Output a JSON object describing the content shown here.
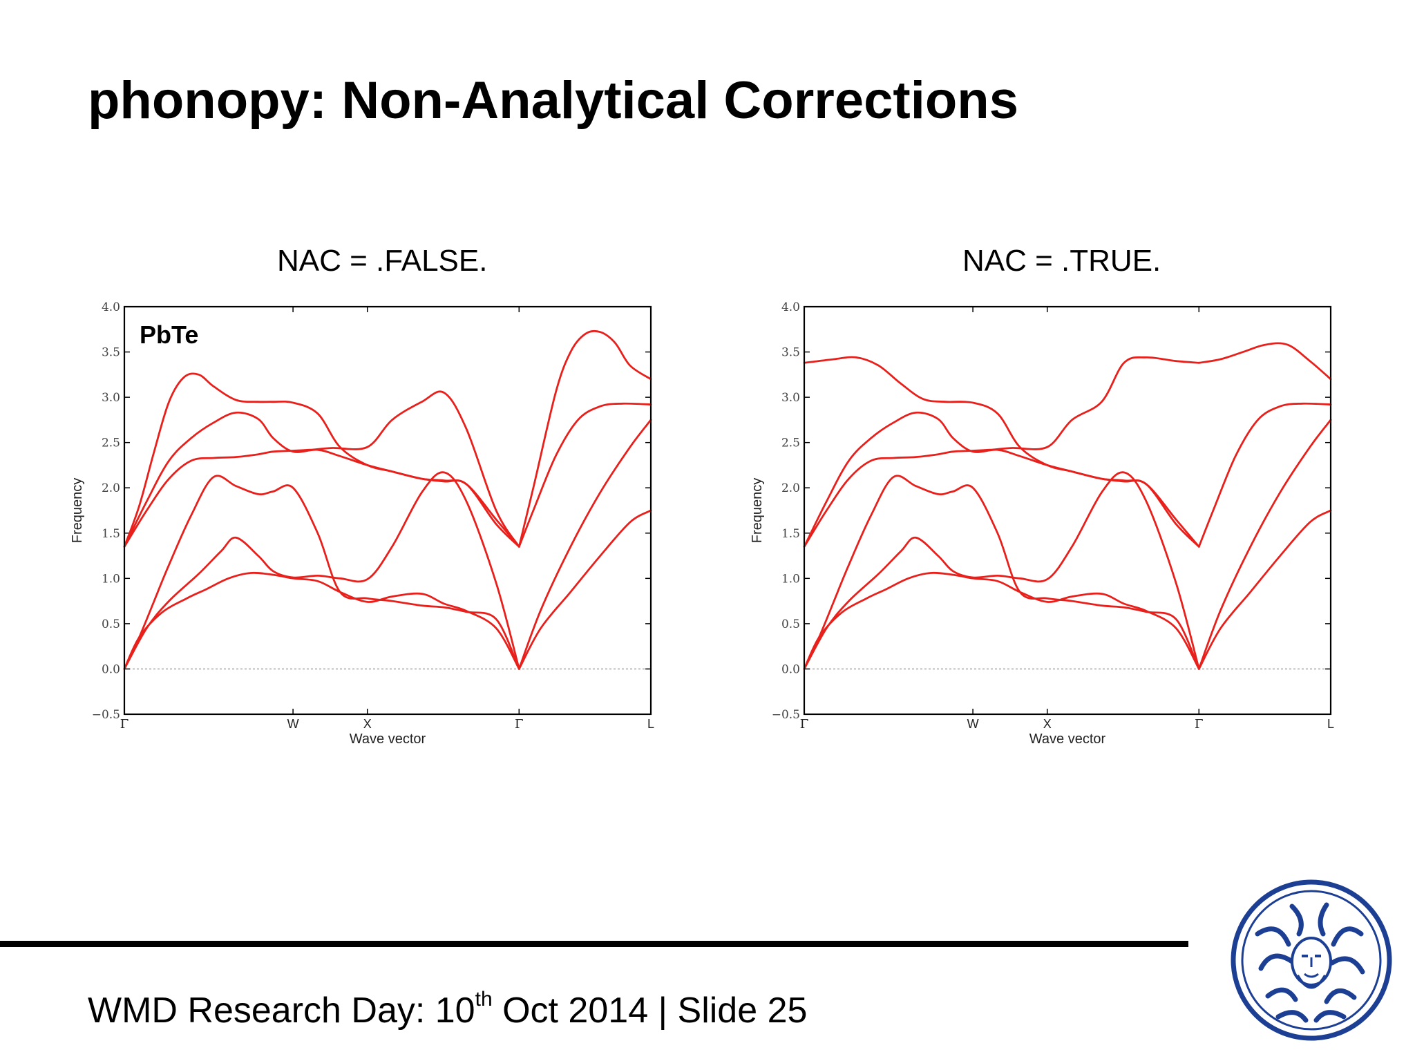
{
  "title": "phonopy: Non-Analytical Corrections",
  "footer": {
    "prefix": "WMD Research Day: 10",
    "superscript": "th",
    "suffix": " Oct 2014 | Slide 25"
  },
  "colors": {
    "band": "#e8201c",
    "logo": "#1c3f94"
  },
  "logo_icon": "university-seal-icon",
  "chart_data": [
    {
      "type": "line",
      "title": "NAC = .FALSE.",
      "annotation": "PbTe",
      "xlabel": "Wave vector",
      "ylabel": "Frequency",
      "ylim": [
        -0.5,
        4.0
      ],
      "yticks": [
        "−0.5",
        "0.0",
        "0.5",
        "1.0",
        "1.5",
        "2.0",
        "2.5",
        "3.0",
        "3.5",
        "4.0"
      ],
      "xlim": [
        0,
        3.54
      ],
      "xticks": [
        {
          "value": 0,
          "label": "Γ"
        },
        {
          "value": 1.134,
          "label": "W"
        },
        {
          "value": 1.634,
          "label": "X"
        },
        {
          "value": 2.654,
          "label": "Γ"
        },
        {
          "value": 3.54,
          "label": "L"
        }
      ],
      "zero_line": true,
      "series": [
        {
          "x": [
            0,
            0.1,
            0.25,
            0.42,
            0.55,
            0.7,
            0.85,
            1.0,
            1.134,
            1.3,
            1.45,
            1.634,
            1.8,
            2.0,
            2.15,
            2.3,
            2.5,
            2.654
          ],
          "y": [
            0.0,
            0.35,
            0.62,
            0.78,
            0.88,
            1.0,
            1.06,
            1.04,
            1.0,
            0.97,
            0.85,
            0.74,
            0.8,
            0.83,
            0.72,
            0.64,
            0.45,
            0.0
          ]
        },
        {
          "x": [
            0,
            0.15,
            0.3,
            0.5,
            0.65,
            0.75,
            0.9,
            1.0,
            1.134,
            1.3,
            1.45,
            1.634,
            1.8,
            2.0,
            2.15,
            2.3,
            2.5,
            2.654
          ],
          "y": [
            0.0,
            0.45,
            0.75,
            1.05,
            1.3,
            1.45,
            1.25,
            1.08,
            1.01,
            1.03,
            1.0,
            0.99,
            1.35,
            1.95,
            2.17,
            1.85,
            0.95,
            0.0
          ]
        },
        {
          "x": [
            0,
            0.1,
            0.2,
            0.3,
            0.45,
            0.6,
            0.75,
            0.9,
            1.0,
            1.134,
            1.3,
            1.45,
            1.634,
            1.8,
            2.0,
            2.15,
            2.3,
            2.5,
            2.654
          ],
          "y": [
            0.0,
            0.35,
            0.75,
            1.15,
            1.7,
            2.12,
            2.02,
            1.93,
            1.96,
            2.0,
            1.5,
            0.85,
            0.78,
            0.75,
            0.7,
            0.68,
            0.63,
            0.55,
            0.0
          ]
        },
        {
          "x": [
            0,
            0.15,
            0.3,
            0.45,
            0.6,
            0.75,
            0.9,
            1.0,
            1.134,
            1.25,
            1.4,
            1.634,
            1.8,
            2.0,
            2.15,
            2.3,
            2.5,
            2.654
          ],
          "y": [
            1.35,
            1.75,
            2.1,
            2.3,
            2.33,
            2.34,
            2.37,
            2.4,
            2.41,
            2.42,
            2.44,
            2.45,
            2.75,
            2.95,
            3.05,
            2.65,
            1.75,
            1.35
          ]
        },
        {
          "x": [
            0,
            0.15,
            0.3,
            0.45,
            0.6,
            0.75,
            0.9,
            1.0,
            1.134,
            1.3,
            1.45,
            1.634,
            1.8,
            2.0,
            2.15,
            2.3,
            2.5,
            2.654
          ],
          "y": [
            1.35,
            1.85,
            2.3,
            2.55,
            2.72,
            2.83,
            2.76,
            2.55,
            2.4,
            2.42,
            2.35,
            2.25,
            2.18,
            2.1,
            2.07,
            2.04,
            1.6,
            1.35
          ]
        },
        {
          "x": [
            0,
            0.1,
            0.2,
            0.3,
            0.4,
            0.5,
            0.6,
            0.75,
            0.9,
            1.0,
            1.134,
            1.3,
            1.45,
            1.634,
            1.8,
            2.0,
            2.15,
            2.3,
            2.5,
            2.654
          ],
          "y": [
            1.35,
            1.8,
            2.4,
            2.95,
            3.22,
            3.25,
            3.12,
            2.97,
            2.95,
            2.95,
            2.94,
            2.82,
            2.45,
            2.25,
            2.18,
            2.1,
            2.08,
            2.04,
            1.65,
            1.35
          ]
        },
        {
          "x": [
            2.654,
            2.8,
            3.0,
            3.2,
            3.4,
            3.54
          ],
          "y": [
            0.0,
            0.45,
            0.85,
            1.25,
            1.62,
            1.75
          ]
        },
        {
          "x": [
            2.654,
            2.8,
            3.0,
            3.2,
            3.4,
            3.54
          ],
          "y": [
            0.0,
            0.65,
            1.35,
            1.95,
            2.45,
            2.75
          ]
        },
        {
          "x": [
            2.654,
            2.75,
            2.9,
            3.05,
            3.2,
            3.35,
            3.54
          ],
          "y": [
            1.35,
            1.75,
            2.35,
            2.75,
            2.9,
            2.93,
            2.92
          ]
        },
        {
          "x": [
            2.654,
            2.75,
            2.9,
            3.0,
            3.1,
            3.2,
            3.3,
            3.4,
            3.54
          ],
          "y": [
            1.35,
            2.0,
            3.05,
            3.5,
            3.7,
            3.72,
            3.6,
            3.35,
            3.2
          ]
        }
      ]
    },
    {
      "type": "line",
      "title": "NAC = .TRUE.",
      "xlabel": "Wave vector",
      "ylabel": "Frequency",
      "ylim": [
        -0.5,
        4.0
      ],
      "yticks": [
        "−0.5",
        "0.0",
        "0.5",
        "1.0",
        "1.5",
        "2.0",
        "2.5",
        "3.0",
        "3.5",
        "4.0"
      ],
      "xlim": [
        0,
        3.54
      ],
      "xticks": [
        {
          "value": 0,
          "label": "Γ"
        },
        {
          "value": 1.134,
          "label": "W"
        },
        {
          "value": 1.634,
          "label": "X"
        },
        {
          "value": 2.654,
          "label": "Γ"
        },
        {
          "value": 3.54,
          "label": "L"
        }
      ],
      "zero_line": true,
      "series": [
        {
          "x": [
            0,
            0.1,
            0.25,
            0.42,
            0.55,
            0.7,
            0.85,
            1.0,
            1.134,
            1.3,
            1.45,
            1.634,
            1.8,
            2.0,
            2.15,
            2.3,
            2.5,
            2.654
          ],
          "y": [
            0.0,
            0.35,
            0.62,
            0.78,
            0.88,
            1.0,
            1.06,
            1.04,
            1.0,
            0.97,
            0.85,
            0.74,
            0.8,
            0.83,
            0.72,
            0.64,
            0.45,
            0.0
          ]
        },
        {
          "x": [
            0,
            0.15,
            0.3,
            0.5,
            0.65,
            0.75,
            0.9,
            1.0,
            1.134,
            1.3,
            1.45,
            1.634,
            1.8,
            2.0,
            2.15,
            2.3,
            2.5,
            2.654
          ],
          "y": [
            0.0,
            0.45,
            0.75,
            1.05,
            1.3,
            1.45,
            1.25,
            1.08,
            1.01,
            1.03,
            1.0,
            0.99,
            1.35,
            1.95,
            2.17,
            1.85,
            0.95,
            0.0
          ]
        },
        {
          "x": [
            0,
            0.1,
            0.2,
            0.3,
            0.45,
            0.6,
            0.75,
            0.9,
            1.0,
            1.134,
            1.3,
            1.45,
            1.634,
            1.8,
            2.0,
            2.15,
            2.3,
            2.5,
            2.654
          ],
          "y": [
            0.0,
            0.35,
            0.75,
            1.15,
            1.7,
            2.12,
            2.02,
            1.93,
            1.96,
            2.0,
            1.5,
            0.85,
            0.78,
            0.75,
            0.7,
            0.68,
            0.63,
            0.55,
            0.0
          ]
        },
        {
          "x": [
            0,
            0.15,
            0.3,
            0.45,
            0.6,
            0.75,
            0.9,
            1.0,
            1.134,
            1.25,
            1.4,
            1.634,
            1.8,
            2.0,
            2.15,
            2.3,
            2.5,
            2.654
          ],
          "y": [
            1.35,
            1.75,
            2.1,
            2.3,
            2.33,
            2.34,
            2.37,
            2.4,
            2.41,
            2.42,
            2.44,
            2.45,
            2.75,
            2.95,
            3.38,
            3.44,
            3.4,
            3.38
          ]
        },
        {
          "x": [
            0,
            0.15,
            0.3,
            0.45,
            0.6,
            0.75,
            0.9,
            1.0,
            1.134,
            1.3,
            1.45,
            1.634,
            1.8,
            2.0,
            2.15,
            2.3,
            2.5,
            2.654
          ],
          "y": [
            1.35,
            1.85,
            2.3,
            2.55,
            2.72,
            2.83,
            2.76,
            2.55,
            2.4,
            2.42,
            2.35,
            2.25,
            2.18,
            2.1,
            2.07,
            2.04,
            1.6,
            1.35
          ]
        },
        {
          "x": [
            0,
            0.2,
            0.35,
            0.5,
            0.65,
            0.8,
            0.95,
            1.134,
            1.3,
            1.45,
            1.634,
            1.8,
            2.0,
            2.15,
            2.3,
            2.5,
            2.654
          ],
          "y": [
            3.38,
            3.42,
            3.44,
            3.35,
            3.15,
            2.98,
            2.95,
            2.94,
            2.82,
            2.45,
            2.25,
            2.18,
            2.1,
            2.08,
            2.04,
            1.65,
            1.35
          ]
        },
        {
          "x": [
            2.654,
            2.8,
            3.0,
            3.2,
            3.4,
            3.54
          ],
          "y": [
            0.0,
            0.45,
            0.85,
            1.25,
            1.62,
            1.75
          ]
        },
        {
          "x": [
            2.654,
            2.8,
            3.0,
            3.2,
            3.4,
            3.54
          ],
          "y": [
            0.0,
            0.65,
            1.35,
            1.95,
            2.45,
            2.75
          ]
        },
        {
          "x": [
            2.654,
            2.75,
            2.9,
            3.05,
            3.2,
            3.35,
            3.54
          ],
          "y": [
            1.35,
            1.75,
            2.35,
            2.75,
            2.9,
            2.93,
            2.92
          ]
        },
        {
          "x": [
            2.654,
            2.8,
            2.95,
            3.1,
            3.25,
            3.4,
            3.54
          ],
          "y": [
            3.38,
            3.42,
            3.5,
            3.58,
            3.58,
            3.4,
            3.2
          ]
        }
      ]
    }
  ]
}
